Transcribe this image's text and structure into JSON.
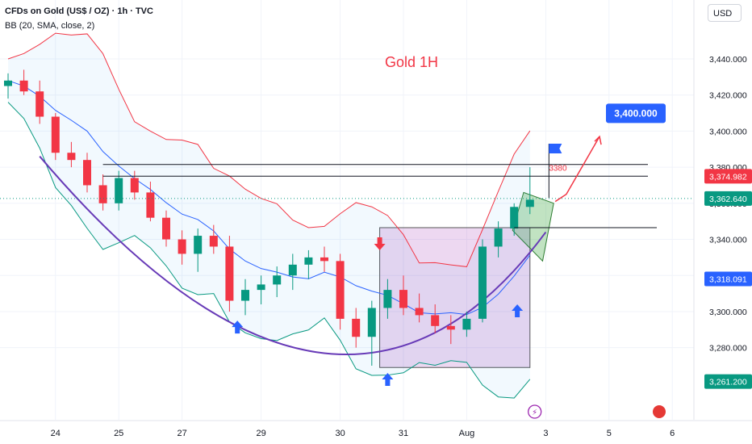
{
  "header": {
    "symbol_line": "CFDs on Gold (US$ / OZ) · 1h · TVC",
    "indicator_line": "BB (20, SMA, close, 2)"
  },
  "currency_button": "USD",
  "chart_data": {
    "type": "candlestick",
    "title": "Gold 1H",
    "y_axis": {
      "range": [
        3250,
        3460
      ],
      "ticks": [
        "3,440.000",
        "3,420.000",
        "3,400.000",
        "3,380.000",
        "3,360.000",
        "3,340.000",
        "3,320.000",
        "3,300.000",
        "3,280.000"
      ],
      "tick_values": [
        3440,
        3420,
        3400,
        3380,
        3360,
        3340,
        3320,
        3300,
        3280
      ]
    },
    "x_axis": {
      "ticks": [
        "24",
        "25",
        "27",
        "29",
        "30",
        "31",
        "Aug",
        "3",
        "5",
        "6"
      ],
      "tick_bar_index": [
        3,
        7,
        11,
        16,
        21,
        25,
        29,
        34,
        38,
        42
      ]
    },
    "price_labels": [
      {
        "text": "3,374.982",
        "value": 3374.982,
        "color": "#f23645"
      },
      {
        "text": "3,362.640",
        "value": 3362.64,
        "color": "#089981"
      },
      {
        "text": "3,318.091",
        "value": 3318.091,
        "color": "#2962ff"
      },
      {
        "text": "3,261.200",
        "value": 3261.2,
        "color": "#089981"
      }
    ],
    "target": {
      "text": "3,400.000",
      "value": 3400
    },
    "level_text": "3380",
    "level_value": 3380,
    "resistance_levels": [
      3381.5,
      3375,
      3346.5
    ],
    "candles": [
      [
        3425,
        3432,
        3418,
        3428
      ],
      [
        3428,
        3434,
        3420,
        3422
      ],
      [
        3422,
        3428,
        3404,
        3408
      ],
      [
        3408,
        3410,
        3384,
        3388
      ],
      [
        3388,
        3394,
        3380,
        3384
      ],
      [
        3384,
        3388,
        3366,
        3370
      ],
      [
        3370,
        3376,
        3356,
        3360
      ],
      [
        3360,
        3378,
        3356,
        3374
      ],
      [
        3374,
        3378,
        3362,
        3366
      ],
      [
        3366,
        3372,
        3350,
        3352
      ],
      [
        3352,
        3356,
        3336,
        3340
      ],
      [
        3340,
        3345,
        3326,
        3332
      ],
      [
        3332,
        3346,
        3322,
        3342
      ],
      [
        3342,
        3348,
        3332,
        3336
      ],
      [
        3336,
        3342,
        3300,
        3306
      ],
      [
        3306,
        3318,
        3298,
        3312
      ],
      [
        3312,
        3320,
        3304,
        3315
      ],
      [
        3315,
        3325,
        3308,
        3320
      ],
      [
        3320,
        3332,
        3312,
        3326
      ],
      [
        3326,
        3334,
        3318,
        3330
      ],
      [
        3330,
        3336,
        3322,
        3328
      ],
      [
        3328,
        3332,
        3290,
        3296
      ],
      [
        3296,
        3302,
        3280,
        3286
      ],
      [
        3286,
        3306,
        3270,
        3302
      ],
      [
        3302,
        3318,
        3296,
        3312
      ],
      [
        3312,
        3320,
        3298,
        3302
      ],
      [
        3302,
        3310,
        3294,
        3298
      ],
      [
        3298,
        3304,
        3288,
        3292
      ],
      [
        3292,
        3298,
        3282,
        3290
      ],
      [
        3290,
        3300,
        3286,
        3296
      ],
      [
        3296,
        3340,
        3294,
        3336
      ],
      [
        3336,
        3350,
        3330,
        3346
      ],
      [
        3346,
        3360,
        3342,
        3358
      ],
      [
        3358,
        3380,
        3354,
        3362
      ]
    ],
    "bollinger_band_note": "BB (20, SMA, close, 2)"
  }
}
